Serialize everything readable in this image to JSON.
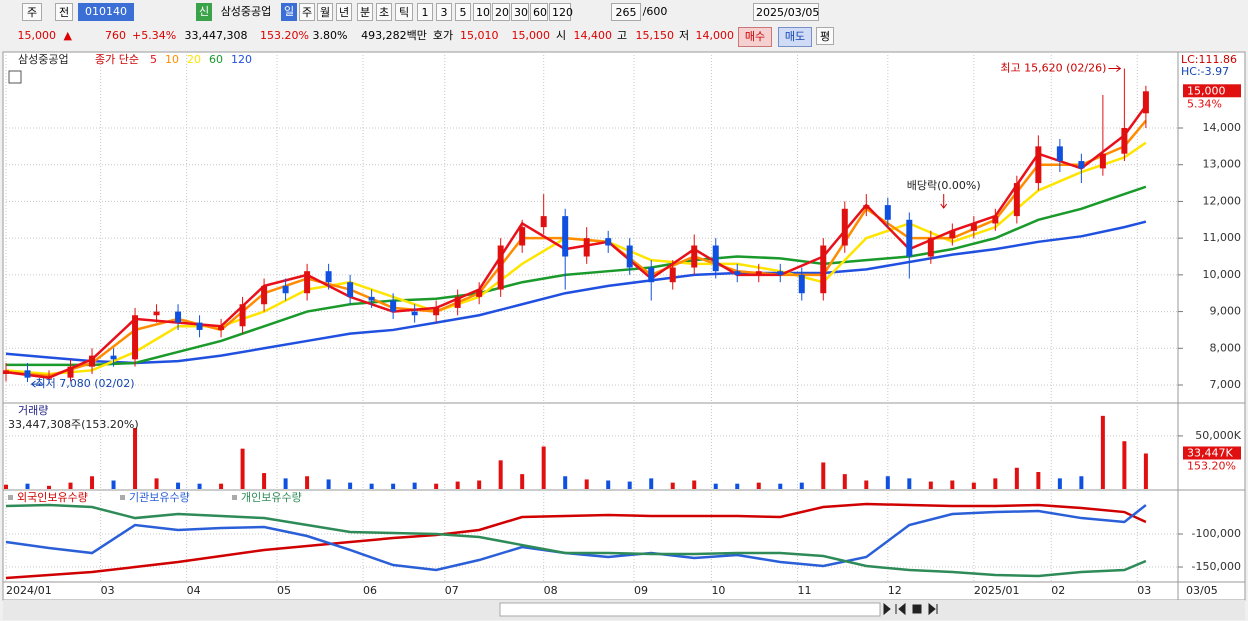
{
  "toolbar": {
    "row1": [
      "주",
      "전",
      "010140",
      "신",
      "삼성중공업",
      "일",
      "주",
      "월",
      "년",
      "분",
      "초",
      "틱",
      "1",
      "3",
      "5",
      "10",
      "20",
      "30",
      "60",
      "120",
      "265",
      "/600",
      "2025/03/05"
    ],
    "row2": [
      "15,000",
      "▲",
      "760",
      "+5.34%",
      "33,447,308",
      "153.20%",
      "3.80%",
      "493,282백만",
      "호가",
      "15,010",
      "15,000",
      "시",
      "14,400",
      "고",
      "15,150",
      "저",
      "14,000",
      "매수",
      "매도",
      "평"
    ]
  },
  "chart_data": [
    {
      "type": "candlestick",
      "title": "삼성중공업",
      "ma_label": "종가 단순",
      "x": [
        0,
        5,
        10,
        15,
        20,
        25,
        30,
        35,
        40,
        45,
        50,
        55,
        60,
        65,
        70,
        75,
        80,
        85,
        90,
        95,
        100,
        105,
        110,
        115,
        120,
        125,
        130,
        135,
        140,
        145,
        150,
        155,
        160,
        165,
        170,
        175,
        180,
        185,
        190,
        195,
        200,
        205,
        210,
        215,
        220,
        225,
        230,
        235,
        240,
        245,
        250,
        255,
        260,
        265
      ],
      "open": [
        7300,
        7400,
        7200,
        7200,
        7500,
        7800,
        7700,
        8900,
        9000,
        8700,
        8500,
        8600,
        9200,
        9700,
        9500,
        10100,
        9800,
        9400,
        9300,
        9000,
        8900,
        9100,
        9400,
        9600,
        10800,
        11300,
        11600,
        10500,
        11000,
        10800,
        10200,
        9800,
        10200,
        10800,
        10100,
        10000,
        10100,
        10000,
        9500,
        10800,
        11800,
        11900,
        11500,
        10500,
        11000,
        11200,
        11400,
        11600,
        12500,
        13500,
        13100,
        12900,
        13300,
        14400
      ],
      "high": [
        7600,
        7600,
        7400,
        7700,
        8000,
        8000,
        9100,
        9200,
        9200,
        8900,
        8800,
        9400,
        9900,
        9900,
        10300,
        10300,
        10000,
        9600,
        9500,
        9200,
        9300,
        9600,
        9800,
        11000,
        11500,
        12200,
        11800,
        11300,
        11200,
        11000,
        10400,
        10400,
        11100,
        11000,
        10300,
        10300,
        10300,
        10200,
        11000,
        12000,
        12200,
        12100,
        11700,
        11200,
        11400,
        11600,
        11800,
        12700,
        13800,
        13700,
        13300,
        14900,
        15620,
        15150
      ],
      "low": [
        7100,
        7080,
        7100,
        7100,
        7300,
        7500,
        7500,
        8700,
        8500,
        8300,
        8300,
        8400,
        9000,
        9300,
        9300,
        9600,
        9200,
        9100,
        8800,
        8700,
        8700,
        8900,
        9200,
        9400,
        10600,
        11100,
        9600,
        10300,
        10600,
        10000,
        9300,
        9600,
        10000,
        9900,
        9800,
        9800,
        9800,
        9300,
        9300,
        10600,
        11600,
        11300,
        9900,
        10300,
        10800,
        11000,
        11200,
        11400,
        12300,
        12800,
        12500,
        12700,
        13100,
        14000
      ],
      "close": [
        7400,
        7200,
        7200,
        7500,
        7800,
        7700,
        8900,
        9000,
        8700,
        8500,
        8600,
        9200,
        9700,
        9500,
        10100,
        9800,
        9400,
        9300,
        9000,
        8900,
        9100,
        9400,
        9600,
        10800,
        11300,
        11600,
        10500,
        11000,
        10800,
        10200,
        9800,
        10200,
        10800,
        10100,
        10000,
        10100,
        10000,
        9500,
        10800,
        11800,
        11900,
        11500,
        10500,
        11000,
        11200,
        11400,
        11600,
        12500,
        13500,
        13100,
        12900,
        13300,
        14000,
        15000
      ],
      "up_color": "#e01010",
      "down_color": "#1050e0",
      "xlim": [
        0,
        272
      ],
      "ylim": [
        6510,
        16070
      ],
      "yticks": [
        {
          "value": 7000,
          "label": "7,000"
        },
        {
          "value": 8000,
          "label": "8,000"
        },
        {
          "value": 9000,
          "label": "9,000"
        },
        {
          "value": 10000,
          "label": "10,000"
        },
        {
          "value": 11000,
          "label": "11,000"
        },
        {
          "value": 12000,
          "label": "12,000"
        },
        {
          "value": 13000,
          "label": "13,000"
        },
        {
          "value": 14000,
          "label": "14,000"
        }
      ],
      "grid": true,
      "series": [
        {
          "name": "5",
          "color": "#e8101a",
          "x": [
            0,
            10,
            20,
            30,
            40,
            50,
            60,
            70,
            80,
            90,
            100,
            110,
            120,
            130,
            140,
            150,
            160,
            170,
            180,
            190,
            200,
            210,
            220,
            230,
            240,
            250,
            260,
            265
          ],
          "values": [
            7350,
            7200,
            7700,
            8800,
            8700,
            8600,
            9700,
            10000,
            9400,
            9000,
            9100,
            9600,
            11400,
            10700,
            10900,
            9900,
            10700,
            10000,
            10000,
            10500,
            11900,
            10700,
            11200,
            11600,
            13300,
            12900,
            13800,
            14600
          ]
        },
        {
          "name": "10",
          "color": "#ff8c00",
          "x": [
            0,
            10,
            20,
            30,
            40,
            50,
            60,
            70,
            80,
            90,
            100,
            110,
            120,
            130,
            140,
            150,
            160,
            170,
            180,
            190,
            200,
            210,
            220,
            230,
            240,
            250,
            260,
            265
          ],
          "values": [
            7350,
            7250,
            7600,
            8500,
            8800,
            8500,
            9500,
            9900,
            9600,
            9100,
            9000,
            9500,
            11000,
            11000,
            10900,
            10000,
            10500,
            10100,
            10000,
            10000,
            11800,
            11000,
            11000,
            11500,
            13000,
            13000,
            13500,
            14200
          ]
        },
        {
          "name": "20",
          "color": "#ffe400",
          "x": [
            0,
            10,
            20,
            30,
            40,
            50,
            60,
            70,
            80,
            90,
            100,
            110,
            120,
            130,
            140,
            150,
            160,
            170,
            180,
            190,
            200,
            210,
            220,
            230,
            240,
            250,
            260,
            265
          ],
          "values": [
            7400,
            7300,
            7400,
            7900,
            8600,
            8600,
            9000,
            9600,
            9800,
            9400,
            9000,
            9400,
            10300,
            11000,
            10900,
            10400,
            10300,
            10300,
            10100,
            9800,
            11000,
            11400,
            10900,
            11300,
            12300,
            12800,
            13200,
            13600
          ]
        },
        {
          "name": "60",
          "color": "#1a9a2a",
          "x": [
            0,
            10,
            20,
            30,
            40,
            50,
            60,
            70,
            80,
            90,
            100,
            110,
            120,
            130,
            140,
            150,
            160,
            170,
            180,
            190,
            200,
            210,
            220,
            230,
            240,
            250,
            260,
            265
          ],
          "values": [
            7550,
            7550,
            7550,
            7600,
            7900,
            8200,
            8600,
            9000,
            9200,
            9300,
            9350,
            9500,
            9800,
            10000,
            10100,
            10200,
            10400,
            10500,
            10450,
            10300,
            10400,
            10500,
            10700,
            11000,
            11500,
            11800,
            12200,
            12400
          ]
        },
        {
          "name": "120",
          "color": "#2050e0",
          "x": [
            0,
            10,
            20,
            30,
            40,
            50,
            60,
            70,
            80,
            90,
            100,
            110,
            120,
            130,
            140,
            150,
            160,
            170,
            180,
            190,
            200,
            210,
            220,
            230,
            240,
            250,
            260,
            265
          ],
          "values": [
            7850,
            7750,
            7650,
            7600,
            7650,
            7800,
            8000,
            8200,
            8400,
            8500,
            8700,
            8900,
            9200,
            9500,
            9700,
            9850,
            10000,
            10050,
            10050,
            10050,
            10150,
            10350,
            10550,
            10700,
            10900,
            11050,
            11300,
            11450
          ]
        }
      ],
      "max_label": "최고 15,620 (02/26)",
      "min_label": "최저 7,080 (02/02)",
      "event_label": "배당락(0.00%)",
      "lc_label": "LC:111.86",
      "hc_label": "HC:-3.97",
      "last_price_label": "15,000",
      "last_change_label": "5.34%"
    },
    {
      "type": "bar",
      "title": "거래량",
      "subtitle": "33,447,308주(153.20%)",
      "x": [
        0,
        5,
        10,
        15,
        20,
        25,
        30,
        35,
        40,
        45,
        50,
        55,
        60,
        65,
        70,
        75,
        80,
        85,
        90,
        95,
        100,
        105,
        110,
        115,
        120,
        125,
        130,
        135,
        140,
        145,
        150,
        155,
        160,
        165,
        170,
        175,
        180,
        185,
        190,
        195,
        200,
        205,
        210,
        215,
        220,
        225,
        230,
        235,
        240,
        245,
        250,
        255,
        260,
        265
      ],
      "values": [
        4000,
        5000,
        3000,
        6000,
        12000,
        8000,
        57500,
        10000,
        6000,
        5000,
        5000,
        38000,
        15000,
        10000,
        12000,
        9000,
        6000,
        5000,
        5000,
        6000,
        5000,
        7000,
        8000,
        27000,
        14000,
        40000,
        12000,
        9000,
        8000,
        7000,
        10000,
        6000,
        8000,
        5000,
        5000,
        6000,
        5000,
        6000,
        25000,
        14000,
        8000,
        12000,
        10000,
        7000,
        8000,
        6000,
        10000,
        20000,
        16000,
        10000,
        12000,
        68900,
        45000,
        33447
      ],
      "xlim": [
        0,
        272
      ],
      "ylim": [
        0,
        81000
      ],
      "yticks": [
        {
          "value": 50000,
          "label": "50,000K"
        }
      ],
      "last_value_label": "33,447K",
      "last_ratio_label": "153.20%"
    },
    {
      "type": "line",
      "x": [
        0,
        10,
        20,
        30,
        40,
        50,
        60,
        70,
        80,
        90,
        100,
        110,
        120,
        130,
        140,
        150,
        160,
        170,
        180,
        190,
        200,
        210,
        220,
        230,
        240,
        250,
        260,
        265
      ],
      "series": [
        {
          "name": "외국인보유수량",
          "color": "#d00000",
          "values": [
            -166700,
            -162100,
            -157600,
            -150000,
            -142400,
            -133300,
            -124200,
            -118200,
            -112100,
            -106100,
            -101500,
            -93900,
            -74200,
            -72700,
            -71200,
            -72700,
            -72700,
            -72700,
            -74200,
            -59100,
            -54500,
            -56100,
            -57600,
            -57600,
            -56100,
            -60600,
            -66700,
            -81800
          ]
        },
        {
          "name": "기관보유수량",
          "color": "#2a5fd8",
          "values": [
            -112100,
            -121200,
            -128800,
            -86400,
            -93900,
            -90900,
            -89400,
            -103000,
            -124200,
            -147000,
            -154500,
            -139400,
            -119700,
            -128800,
            -134800,
            -128800,
            -136400,
            -131800,
            -142400,
            -148500,
            -134800,
            -86400,
            -69700,
            -66700,
            -65200,
            -75800,
            -81800,
            -56100
          ]
        },
        {
          "name": "개인보유수량",
          "color": "#2e8b57",
          "values": [
            -57600,
            -56100,
            -59100,
            -75800,
            -69700,
            -72700,
            -75800,
            -86400,
            -97000,
            -98500,
            -100000,
            -104500,
            -116700,
            -128800,
            -128800,
            -130300,
            -130300,
            -128800,
            -128800,
            -133300,
            -148500,
            -154500,
            -157600,
            -162100,
            -163600,
            -157600,
            -154500,
            -140900
          ]
        }
      ],
      "xlim": [
        0,
        272
      ],
      "ylim": [
        -172700,
        -33300
      ],
      "yticks": [
        {
          "value": -100000,
          "label": "-100,000"
        },
        {
          "value": -150000,
          "label": "-150,000"
        }
      ],
      "xticks": [
        {
          "value": 0,
          "label": "2024/01"
        },
        {
          "value": 22,
          "label": "03"
        },
        {
          "value": 42,
          "label": "04"
        },
        {
          "value": 63,
          "label": "05"
        },
        {
          "value": 83,
          "label": "06"
        },
        {
          "value": 102,
          "label": "07"
        },
        {
          "value": 125,
          "label": "08"
        },
        {
          "value": 146,
          "label": "09"
        },
        {
          "value": 164,
          "label": "10"
        },
        {
          "value": 184,
          "label": "11"
        },
        {
          "value": 205,
          "label": "12"
        },
        {
          "value": 225,
          "label": "2025/01"
        },
        {
          "value": 243,
          "label": "02"
        },
        {
          "value": 263,
          "label": "03"
        }
      ],
      "x_end_label": "03/05"
    }
  ]
}
